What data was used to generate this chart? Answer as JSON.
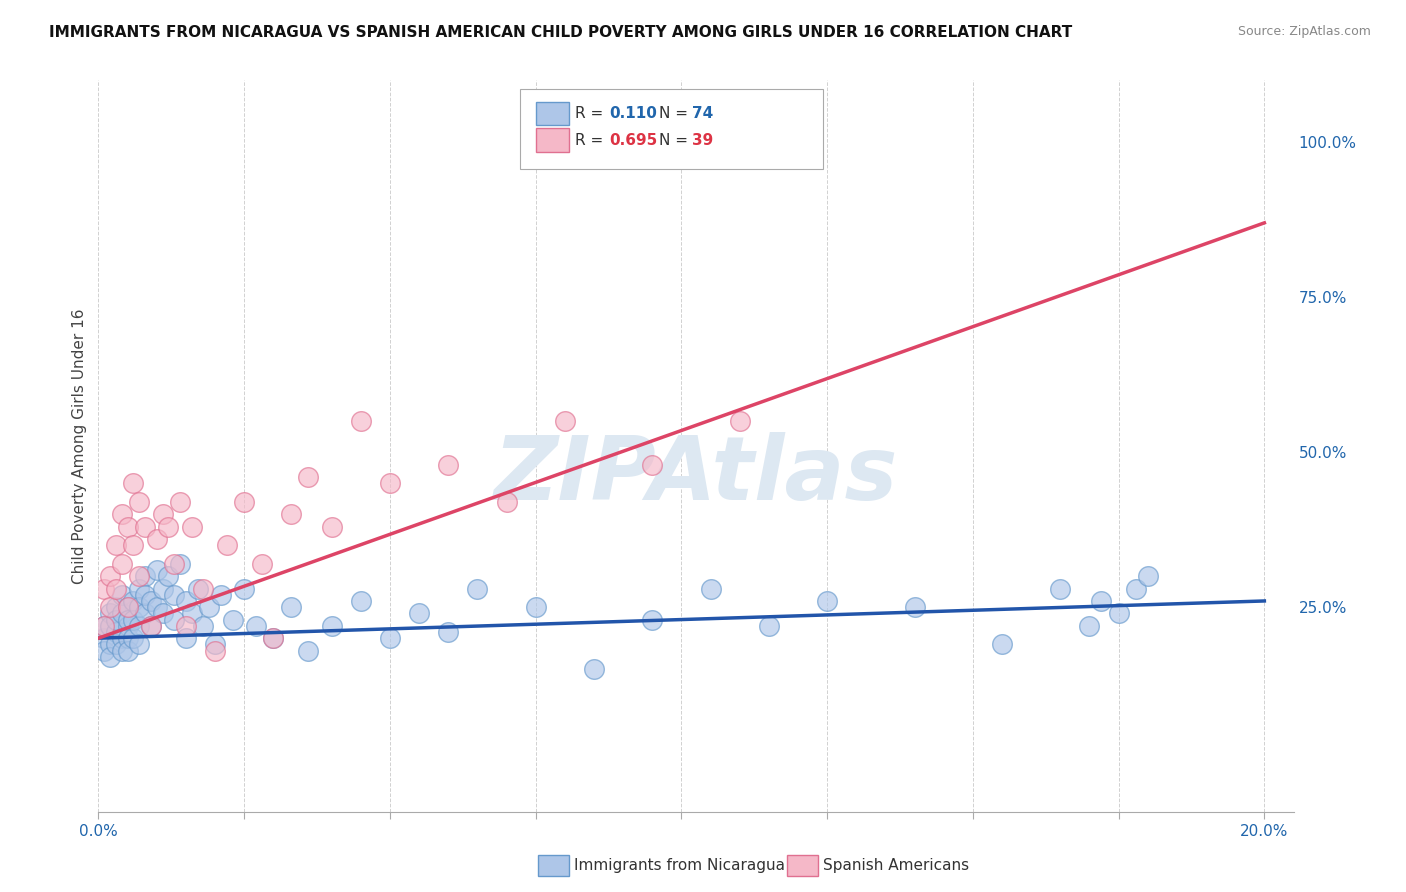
{
  "title": "IMMIGRANTS FROM NICARAGUA VS SPANISH AMERICAN CHILD POVERTY AMONG GIRLS UNDER 16 CORRELATION CHART",
  "source": "Source: ZipAtlas.com",
  "ylabel": "Child Poverty Among Girls Under 16",
  "xlim": [
    0.0,
    0.205
  ],
  "ylim": [
    -0.08,
    1.1
  ],
  "xtick_vals": [
    0.0,
    0.025,
    0.05,
    0.075,
    0.1,
    0.125,
    0.15,
    0.175,
    0.2
  ],
  "xticklabels_show": [
    "0.0%",
    "",
    "",
    "",
    "",
    "",
    "",
    "",
    "20.0%"
  ],
  "yticks_right": [
    0.0,
    0.25,
    0.5,
    0.75,
    1.0
  ],
  "ytick_right_labels": [
    "",
    "25.0%",
    "50.0%",
    "75.0%",
    "100.0%"
  ],
  "legend_blue_r": "0.110",
  "legend_blue_n": "74",
  "legend_pink_r": "0.695",
  "legend_pink_n": "39",
  "color_blue_fill": "#aec6e8",
  "color_blue_edge": "#6699cc",
  "color_pink_fill": "#f5b8c8",
  "color_pink_edge": "#e07090",
  "color_blue_line": "#2255aa",
  "color_pink_line": "#dd4466",
  "color_blue_text": "#2166ac",
  "color_pink_text": "#dd3344",
  "watermark": "ZIPAtlas",
  "watermark_color": "#dde8f2",
  "grid_color": "#cccccc",
  "background": "#ffffff",
  "title_fontsize": 11,
  "source_fontsize": 9,
  "tick_fontsize": 11,
  "ylabel_fontsize": 11,
  "blue_x": [
    0.001,
    0.001,
    0.001,
    0.002,
    0.002,
    0.002,
    0.002,
    0.003,
    0.003,
    0.003,
    0.003,
    0.004,
    0.004,
    0.004,
    0.004,
    0.005,
    0.005,
    0.005,
    0.005,
    0.005,
    0.006,
    0.006,
    0.006,
    0.007,
    0.007,
    0.007,
    0.007,
    0.008,
    0.008,
    0.008,
    0.009,
    0.009,
    0.01,
    0.01,
    0.011,
    0.011,
    0.012,
    0.013,
    0.013,
    0.014,
    0.015,
    0.015,
    0.016,
    0.017,
    0.018,
    0.019,
    0.02,
    0.021,
    0.023,
    0.025,
    0.027,
    0.03,
    0.033,
    0.036,
    0.04,
    0.045,
    0.05,
    0.055,
    0.06,
    0.065,
    0.075,
    0.085,
    0.095,
    0.105,
    0.115,
    0.125,
    0.14,
    0.155,
    0.165,
    0.17,
    0.172,
    0.175,
    0.178,
    0.18
  ],
  "blue_y": [
    0.2,
    0.22,
    0.18,
    0.24,
    0.19,
    0.22,
    0.17,
    0.21,
    0.25,
    0.19,
    0.23,
    0.2,
    0.24,
    0.18,
    0.27,
    0.22,
    0.2,
    0.25,
    0.18,
    0.23,
    0.26,
    0.2,
    0.23,
    0.28,
    0.22,
    0.25,
    0.19,
    0.3,
    0.24,
    0.27,
    0.22,
    0.26,
    0.31,
    0.25,
    0.28,
    0.24,
    0.3,
    0.27,
    0.23,
    0.32,
    0.2,
    0.26,
    0.24,
    0.28,
    0.22,
    0.25,
    0.19,
    0.27,
    0.23,
    0.28,
    0.22,
    0.2,
    0.25,
    0.18,
    0.22,
    0.26,
    0.2,
    0.24,
    0.21,
    0.28,
    0.25,
    0.15,
    0.23,
    0.28,
    0.22,
    0.26,
    0.25,
    0.19,
    0.28,
    0.22,
    0.26,
    0.24,
    0.28,
    0.3
  ],
  "pink_x": [
    0.001,
    0.001,
    0.002,
    0.002,
    0.003,
    0.003,
    0.004,
    0.004,
    0.005,
    0.005,
    0.006,
    0.006,
    0.007,
    0.007,
    0.008,
    0.009,
    0.01,
    0.011,
    0.012,
    0.013,
    0.014,
    0.015,
    0.016,
    0.018,
    0.02,
    0.022,
    0.025,
    0.028,
    0.03,
    0.033,
    0.036,
    0.04,
    0.045,
    0.05,
    0.06,
    0.07,
    0.08,
    0.095,
    0.11
  ],
  "pink_y": [
    0.22,
    0.28,
    0.25,
    0.3,
    0.35,
    0.28,
    0.4,
    0.32,
    0.38,
    0.25,
    0.45,
    0.35,
    0.42,
    0.3,
    0.38,
    0.22,
    0.36,
    0.4,
    0.38,
    0.32,
    0.42,
    0.22,
    0.38,
    0.28,
    0.18,
    0.35,
    0.42,
    0.32,
    0.2,
    0.4,
    0.46,
    0.38,
    0.55,
    0.45,
    0.48,
    0.42,
    0.55,
    0.48,
    0.55
  ],
  "blue_line_x0": 0.0,
  "blue_line_x1": 0.2,
  "blue_line_y0": 0.2,
  "blue_line_y1": 0.26,
  "pink_line_x0": 0.0,
  "pink_line_x1": 0.2,
  "pink_line_y0": 0.2,
  "pink_line_y1": 0.87
}
